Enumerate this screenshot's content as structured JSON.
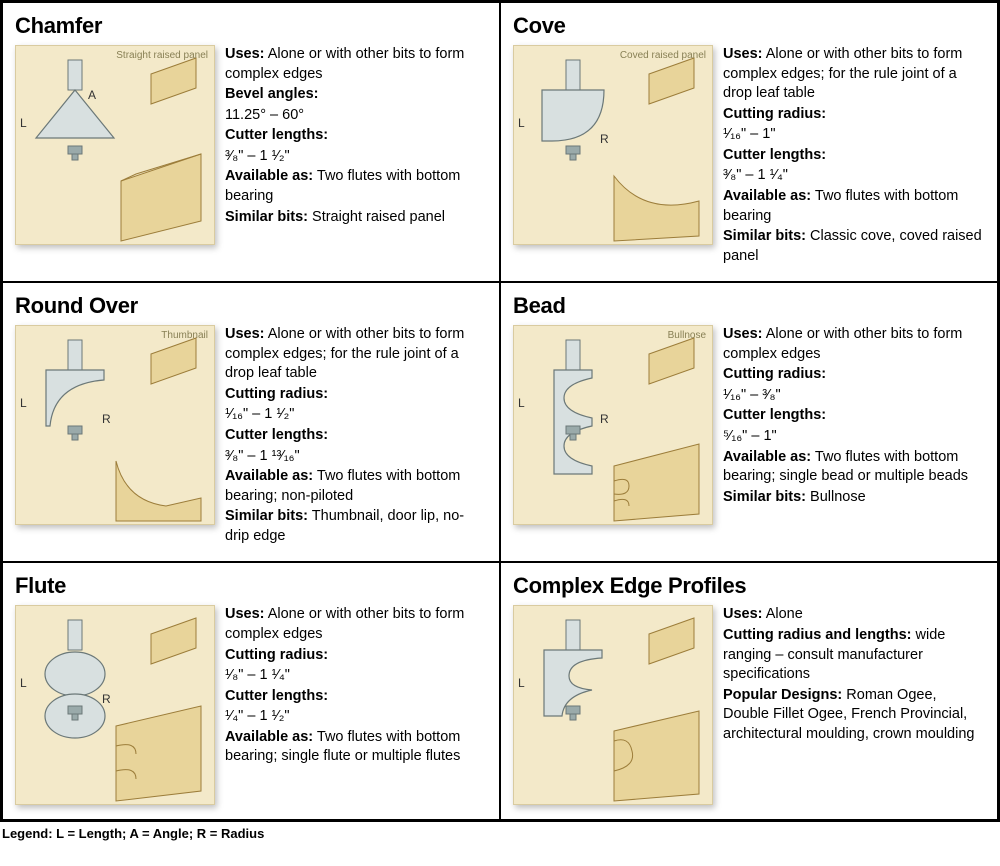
{
  "colors": {
    "panel_bg": "#f3e9c9",
    "panel_border": "#d9cba0",
    "bit_metal_light": "#d8e0e0",
    "bit_metal_dark": "#9aaaaa",
    "bit_edge": "#6b7878",
    "wood_light": "#e8d49a",
    "wood_dark": "#c9a864",
    "wood_edge": "#9c7d3a",
    "caption_color": "#888055",
    "dim_color": "#333333"
  },
  "legend": "Legend: L = Length; A = Angle; R = Radius",
  "cells": [
    {
      "title": "Chamfer",
      "caption": "Straight raised panel",
      "specs": [
        {
          "label": "Uses:",
          "text": " Alone or with other bits to form complex edges"
        },
        {
          "label": "Bevel angles:",
          "text": ""
        },
        {
          "label": "",
          "text": "11.25° – 60°"
        },
        {
          "label": "Cutter lengths:",
          "text": ""
        },
        {
          "label": "",
          "text": "³⁄₈\" – 1 ¹⁄₂\""
        },
        {
          "label": "Available as:",
          "text": " Two flutes with bottom bearing"
        },
        {
          "label": "Similar bits:",
          "text": " Straight raised panel"
        }
      ],
      "dims": {
        "L": true,
        "A": true,
        "R": false
      }
    },
    {
      "title": "Cove",
      "caption": "Coved raised panel",
      "specs": [
        {
          "label": "Uses:",
          "text": " Alone or with other bits to form complex edges; for the rule joint of a drop leaf table"
        },
        {
          "label": "Cutting radius:",
          "text": ""
        },
        {
          "label": "",
          "text": "¹⁄₁₆\" – 1\""
        },
        {
          "label": "Cutter lengths:",
          "text": ""
        },
        {
          "label": "",
          "text": "³⁄₈\" – 1 ¹⁄₄\""
        },
        {
          "label": "Available as:",
          "text": " Two flutes with bottom bearing"
        },
        {
          "label": "Similar bits:",
          "text": " Classic cove, coved raised panel"
        }
      ],
      "dims": {
        "L": true,
        "A": false,
        "R": true
      }
    },
    {
      "title": "Round Over",
      "caption": "Thumbnail",
      "specs": [
        {
          "label": "Uses:",
          "text": " Alone or with other bits to form complex edges; for the rule joint of a drop leaf table"
        },
        {
          "label": "Cutting radius:",
          "text": ""
        },
        {
          "label": "",
          "text": "¹⁄₁₆\" – 1 ¹⁄₂\""
        },
        {
          "label": "Cutter lengths:",
          "text": ""
        },
        {
          "label": "",
          "text": "³⁄₈\" – 1 ¹³⁄₁₆\""
        },
        {
          "label": "Available as:",
          "text": " Two flutes with bottom bearing; non-piloted"
        },
        {
          "label": "Similar bits:",
          "text": " Thumbnail, door lip, no-drip edge"
        }
      ],
      "dims": {
        "L": true,
        "A": false,
        "R": true
      }
    },
    {
      "title": "Bead",
      "caption": "Bullnose",
      "specs": [
        {
          "label": "Uses:",
          "text": " Alone or with other bits to form complex edges"
        },
        {
          "label": "Cutting radius:",
          "text": ""
        },
        {
          "label": "",
          "text": "¹⁄₁₆\" – ³⁄₈\""
        },
        {
          "label": "Cutter lengths:",
          "text": ""
        },
        {
          "label": "",
          "text": "⁵⁄₁₆\" – 1\""
        },
        {
          "label": "Available as:",
          "text": " Two flutes with bottom bearing; single bead or multiple beads"
        },
        {
          "label": "Similar bits:",
          "text": " Bullnose"
        }
      ],
      "dims": {
        "L": true,
        "A": false,
        "R": true
      }
    },
    {
      "title": "Flute",
      "caption": "",
      "specs": [
        {
          "label": "Uses:",
          "text": " Alone or with other bits to form complex edges"
        },
        {
          "label": "Cutting radius:",
          "text": ""
        },
        {
          "label": "",
          "text": "¹⁄₈\" – 1 ¹⁄₄\""
        },
        {
          "label": "Cutter lengths:",
          "text": ""
        },
        {
          "label": "",
          "text": "¹⁄₄\" – 1 ¹⁄₂\""
        },
        {
          "label": "Available as:",
          "text": " Two flutes with bottom bearing; single flute or multiple flutes"
        }
      ],
      "dims": {
        "L": true,
        "A": false,
        "R": true
      }
    },
    {
      "title": "Complex Edge Profiles",
      "caption": "",
      "specs": [
        {
          "label": "Uses:",
          "text": " Alone"
        },
        {
          "label": "Cutting radius and lengths:",
          "text": " wide ranging – consult manufacturer specifications"
        },
        {
          "label": "Popular Designs:",
          "text": "  Roman Ogee, Double Fillet Ogee, French Provincial, architectural moulding, crown moulding"
        }
      ],
      "dims": {
        "L": true,
        "A": false,
        "R": false
      }
    }
  ]
}
